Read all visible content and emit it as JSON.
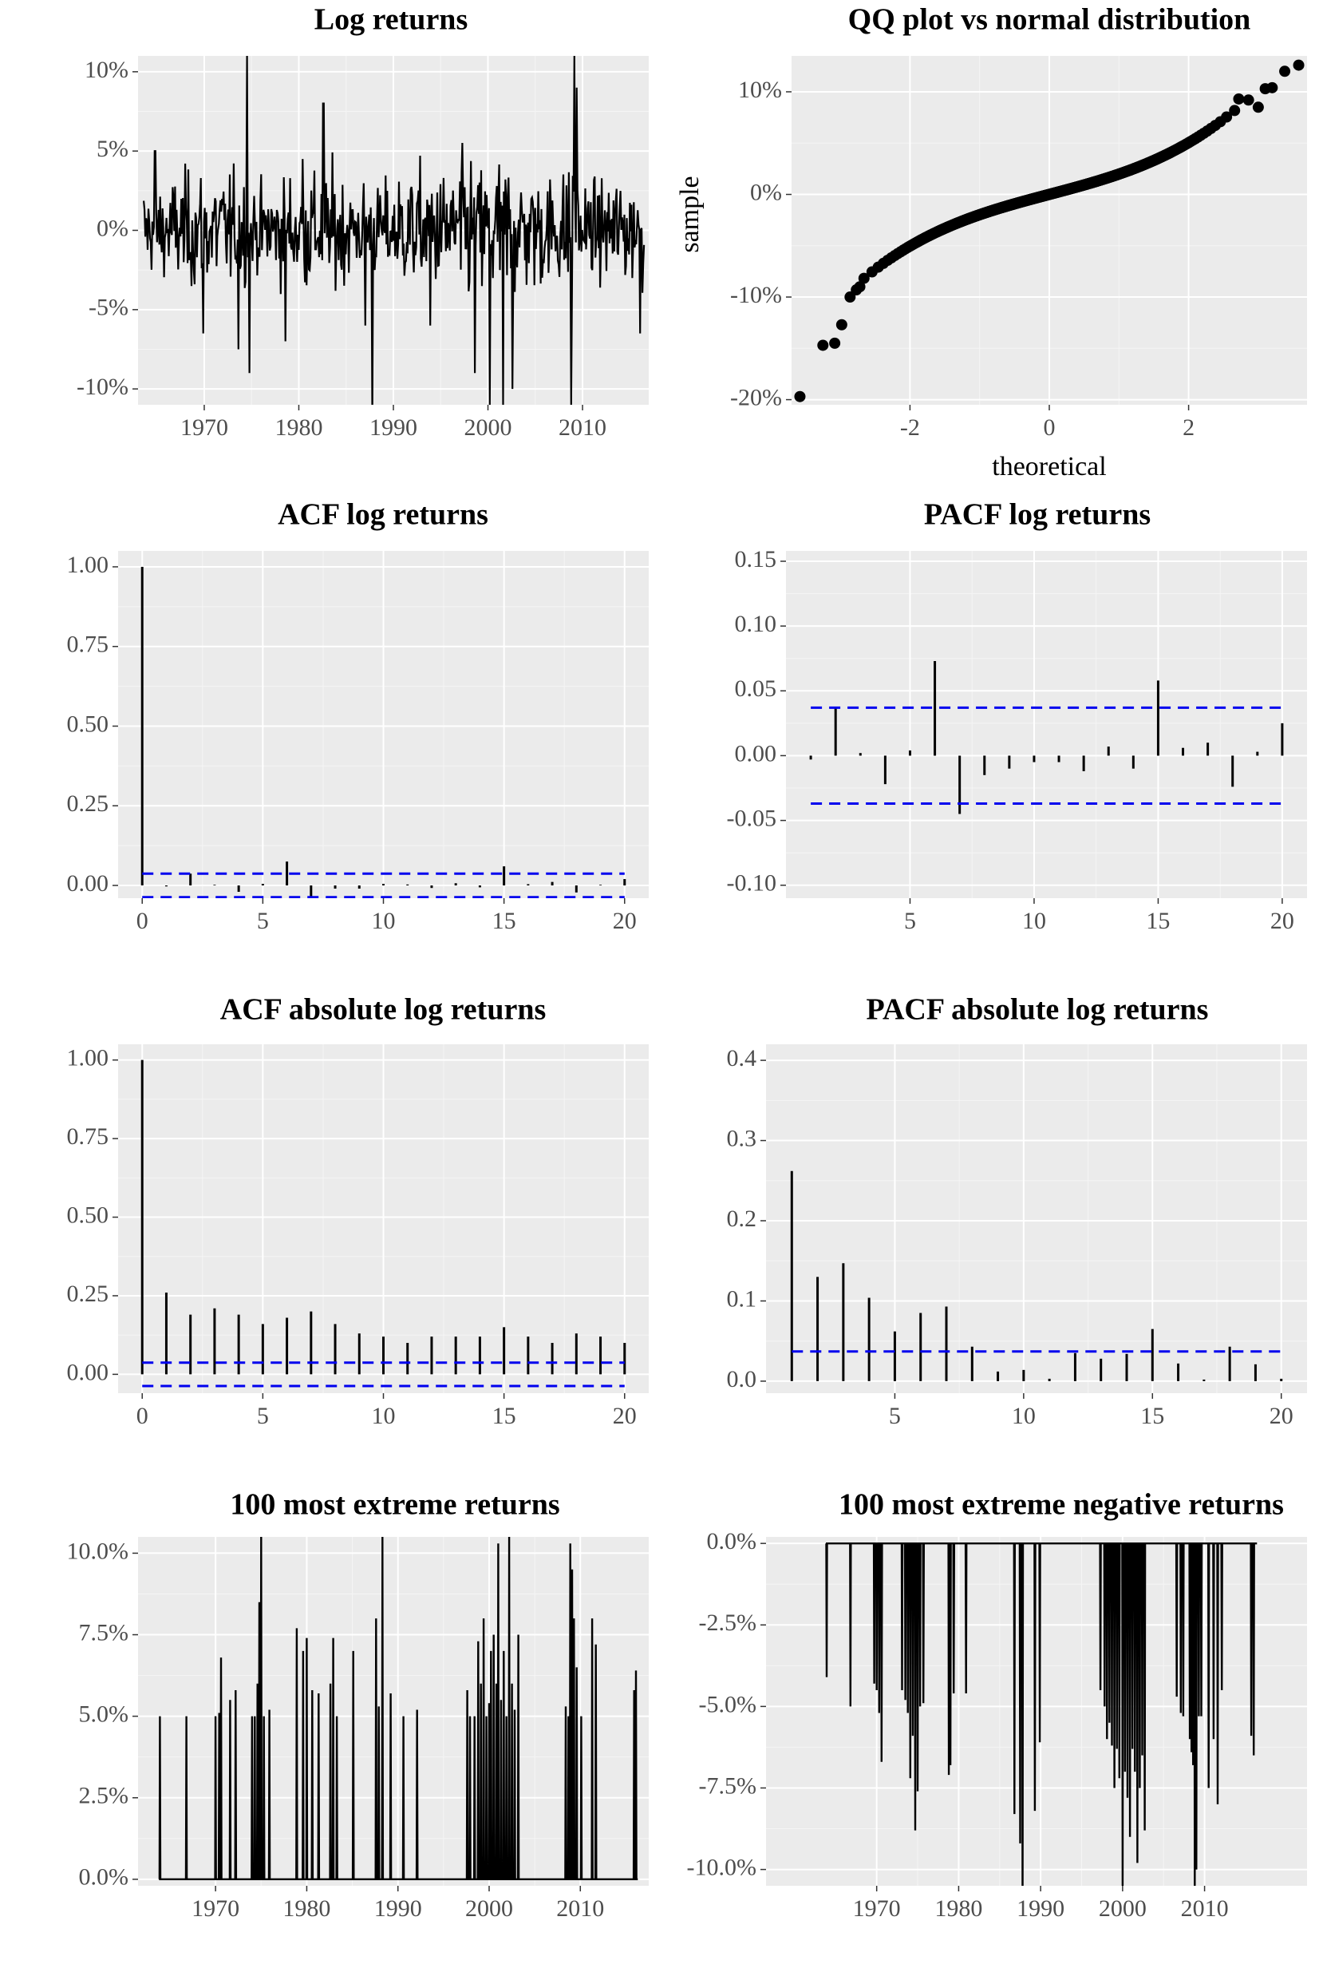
{
  "colors": {
    "panel_bg": "#ebebeb",
    "grid_major": "#ffffff",
    "ink": "#000000",
    "band": "#0000ee",
    "tick_text": "#4d4d4d"
  },
  "chart_data": [
    {
      "id": "log-returns",
      "type": "line",
      "title": "Log returns",
      "xlabel": "",
      "ylabel": "",
      "x_range": [
        1963,
        2017
      ],
      "ylim": [
        -0.11,
        0.11
      ],
      "x_ticks": [
        1970,
        1980,
        1990,
        2000,
        2010
      ],
      "x_tick_labels": [
        "1970",
        "1980",
        "1990",
        "2000",
        "2010"
      ],
      "y_ticks": [
        -0.1,
        -0.05,
        0.0,
        0.05,
        0.1
      ],
      "y_tick_labels": [
        "-10%",
        "-5%",
        "0%",
        "5%",
        "10%"
      ],
      "data_start": 1963.6,
      "data_end": 2016.5,
      "n_points": 640,
      "spikes": [
        [
          1964.8,
          0.05
        ],
        [
          1969.9,
          -0.065
        ],
        [
          1973.6,
          -0.075
        ],
        [
          1974.5,
          0.11
        ],
        [
          1974.8,
          -0.09
        ],
        [
          1978.6,
          -0.07
        ],
        [
          1980.4,
          0.045
        ],
        [
          1982.6,
          0.08
        ],
        [
          1987.0,
          -0.06
        ],
        [
          1987.8,
          -0.12
        ],
        [
          1993.9,
          -0.06
        ],
        [
          1998.6,
          -0.09
        ],
        [
          2000.2,
          -0.11
        ],
        [
          2001.6,
          -0.11
        ],
        [
          2002.6,
          -0.1
        ],
        [
          2008.8,
          -0.11
        ],
        [
          2009.1,
          0.11
        ],
        [
          2009.4,
          0.09
        ],
        [
          2016.1,
          -0.065
        ]
      ],
      "grid": true
    },
    {
      "id": "qq-plot",
      "type": "scatter",
      "title": "QQ plot vs normal distribution",
      "xlabel": "theoretical",
      "ylabel": "sample",
      "xlim": [
        -3.7,
        3.7
      ],
      "ylim": [
        -0.205,
        0.135
      ],
      "x_ticks": [
        -2,
        0,
        2
      ],
      "x_tick_labels": [
        "-2",
        "0",
        "2"
      ],
      "y_ticks": [
        -0.2,
        -0.1,
        0.0,
        0.1
      ],
      "y_tick_labels": [
        "-20%",
        "-10%",
        "0%",
        "10%"
      ],
      "n_points": 640,
      "tail_points": [
        [
          -3.58,
          -0.197
        ],
        [
          -3.25,
          -0.147
        ],
        [
          -3.08,
          -0.145
        ],
        [
          -2.98,
          -0.127
        ],
        [
          -2.86,
          -0.1
        ],
        [
          -2.77,
          -0.093
        ],
        [
          -2.72,
          -0.09
        ],
        [
          2.72,
          0.093
        ],
        [
          2.86,
          0.092
        ],
        [
          3.0,
          0.085
        ],
        [
          3.1,
          0.103
        ],
        [
          3.2,
          0.104
        ],
        [
          3.38,
          0.12
        ],
        [
          3.58,
          0.126
        ]
      ],
      "grid": true
    },
    {
      "id": "acf-log-returns",
      "type": "bar",
      "title": "ACF log returns",
      "xlabel": "",
      "ylabel": "",
      "xlim": [
        -1,
        21
      ],
      "ylim": [
        -0.04,
        1.05
      ],
      "x_ticks": [
        0,
        5,
        10,
        15,
        20
      ],
      "x_tick_labels": [
        "0",
        "5",
        "10",
        "15",
        "20"
      ],
      "y_ticks": [
        0.0,
        0.25,
        0.5,
        0.75,
        1.0
      ],
      "y_tick_labels": [
        "0.00",
        "0.25",
        "0.50",
        "0.75",
        "1.00"
      ],
      "lags": [
        0,
        1,
        2,
        3,
        4,
        5,
        6,
        7,
        8,
        9,
        10,
        11,
        12,
        13,
        14,
        15,
        16,
        17,
        18,
        19,
        20
      ],
      "values": [
        1.0,
        -0.003,
        0.037,
        0.002,
        -0.02,
        0.005,
        0.075,
        -0.043,
        -0.01,
        -0.01,
        0.005,
        0.003,
        -0.008,
        0.007,
        -0.006,
        0.06,
        0.004,
        0.011,
        -0.022,
        0.002,
        0.02
      ],
      "band": 0.037,
      "grid": true
    },
    {
      "id": "pacf-log-returns",
      "type": "bar",
      "title": "PACF log returns",
      "xlabel": "",
      "ylabel": "",
      "xlim": [
        0.0,
        21
      ],
      "ylim": [
        -0.11,
        0.158
      ],
      "x_ticks": [
        5,
        10,
        15,
        20
      ],
      "x_tick_labels": [
        "5",
        "10",
        "15",
        "20"
      ],
      "y_ticks": [
        -0.1,
        -0.05,
        0.0,
        0.05,
        0.1,
        0.15
      ],
      "y_tick_labels": [
        "-0.10",
        "-0.05",
        "0.00",
        "0.05",
        "0.10",
        "0.15"
      ],
      "lags": [
        1,
        2,
        3,
        4,
        5,
        6,
        7,
        8,
        9,
        10,
        11,
        12,
        13,
        14,
        15,
        16,
        17,
        18,
        19,
        20
      ],
      "values": [
        -0.003,
        0.037,
        0.002,
        -0.022,
        0.004,
        0.073,
        -0.045,
        -0.015,
        -0.01,
        -0.005,
        -0.005,
        -0.012,
        0.007,
        -0.01,
        0.058,
        0.006,
        0.01,
        -0.024,
        0.003,
        0.025
      ],
      "band": 0.037,
      "grid": true
    },
    {
      "id": "acf-absolute-log-returns",
      "type": "bar",
      "title": "ACF absolute log returns",
      "xlabel": "",
      "ylabel": "",
      "xlim": [
        -1,
        21
      ],
      "ylim": [
        -0.06,
        1.05
      ],
      "x_ticks": [
        0,
        5,
        10,
        15,
        20
      ],
      "x_tick_labels": [
        "0",
        "5",
        "10",
        "15",
        "20"
      ],
      "y_ticks": [
        0.0,
        0.25,
        0.5,
        0.75,
        1.0
      ],
      "y_tick_labels": [
        "0.00",
        "0.25",
        "0.50",
        "0.75",
        "1.00"
      ],
      "lags": [
        0,
        1,
        2,
        3,
        4,
        5,
        6,
        7,
        8,
        9,
        10,
        11,
        12,
        13,
        14,
        15,
        16,
        17,
        18,
        19,
        20
      ],
      "values": [
        1.0,
        0.26,
        0.19,
        0.21,
        0.19,
        0.16,
        0.18,
        0.2,
        0.16,
        0.13,
        0.12,
        0.1,
        0.12,
        0.12,
        0.12,
        0.15,
        0.12,
        0.1,
        0.13,
        0.12,
        0.1
      ],
      "band": 0.037,
      "band_lower": -0.037,
      "grid": true
    },
    {
      "id": "pacf-absolute-log-returns",
      "type": "bar",
      "title": "PACF absolute log returns",
      "xlabel": "",
      "ylabel": "",
      "xlim": [
        0.0,
        21
      ],
      "ylim": [
        -0.015,
        0.42
      ],
      "x_ticks": [
        5,
        10,
        15,
        20
      ],
      "x_tick_labels": [
        "5",
        "10",
        "15",
        "20"
      ],
      "y_ticks": [
        0.0,
        0.1,
        0.2,
        0.3,
        0.4
      ],
      "y_tick_labels": [
        "0.0",
        "0.1",
        "0.2",
        "0.3",
        "0.4"
      ],
      "lags": [
        1,
        2,
        3,
        4,
        5,
        6,
        7,
        8,
        9,
        10,
        11,
        12,
        13,
        14,
        15,
        16,
        17,
        18,
        19,
        20
      ],
      "values": [
        0.262,
        0.13,
        0.147,
        0.104,
        0.062,
        0.085,
        0.093,
        0.043,
        0.012,
        0.014,
        0.003,
        0.035,
        0.028,
        0.034,
        0.065,
        0.022,
        0.002,
        0.043,
        0.021,
        0.003
      ],
      "band": 0.037,
      "grid": true
    },
    {
      "id": "extreme-returns",
      "type": "line",
      "title": "100 most extreme returns",
      "xlabel": "",
      "ylabel": "",
      "x_range": [
        1961.5,
        2017.5
      ],
      "ylim": [
        -0.002,
        0.105
      ],
      "x_ticks": [
        1970,
        1980,
        1990,
        2000,
        2010
      ],
      "x_tick_labels": [
        "1970",
        "1980",
        "1990",
        "2000",
        "2010"
      ],
      "y_ticks": [
        0.0,
        0.025,
        0.05,
        0.075,
        0.1
      ],
      "y_tick_labels": [
        "0.0%",
        "2.5%",
        "5.0%",
        "7.5%",
        "10.0%"
      ],
      "x_start": 1963.8,
      "x_end": 2016.3,
      "spikes": [
        [
          1963.9,
          0.05
        ],
        [
          1966.8,
          0.05
        ],
        [
          1970.0,
          0.05
        ],
        [
          1970.4,
          0.051
        ],
        [
          1970.6,
          0.068
        ],
        [
          1971.6,
          0.055
        ],
        [
          1972.2,
          0.058
        ],
        [
          1974.0,
          0.05
        ],
        [
          1974.3,
          0.05
        ],
        [
          1974.6,
          0.06
        ],
        [
          1974.8,
          0.085
        ],
        [
          1975.0,
          0.105
        ],
        [
          1975.3,
          0.05
        ],
        [
          1975.9,
          0.052
        ],
        [
          1978.9,
          0.077
        ],
        [
          1979.6,
          0.07
        ],
        [
          1980.0,
          0.074
        ],
        [
          1980.6,
          0.058
        ],
        [
          1981.3,
          0.057
        ],
        [
          1982.6,
          0.06
        ],
        [
          1982.9,
          0.074
        ],
        [
          1983.3,
          0.05
        ],
        [
          1985.1,
          0.07
        ],
        [
          1987.6,
          0.08
        ],
        [
          1987.9,
          0.053
        ],
        [
          1988.3,
          0.105
        ],
        [
          1989.2,
          0.057
        ],
        [
          1990.6,
          0.05
        ],
        [
          1992.1,
          0.052
        ],
        [
          1997.6,
          0.058
        ],
        [
          1997.9,
          0.05
        ],
        [
          1998.4,
          0.05
        ],
        [
          1998.8,
          0.073
        ],
        [
          1999.1,
          0.06
        ],
        [
          1999.4,
          0.08
        ],
        [
          1999.7,
          0.05
        ],
        [
          2000.0,
          0.054
        ],
        [
          2000.2,
          0.07
        ],
        [
          2000.5,
          0.075
        ],
        [
          2000.8,
          0.06
        ],
        [
          2001.0,
          0.103
        ],
        [
          2001.3,
          0.055
        ],
        [
          2001.6,
          0.07
        ],
        [
          2001.9,
          0.05
        ],
        [
          2002.2,
          0.105
        ],
        [
          2002.5,
          0.06
        ],
        [
          2002.8,
          0.052
        ],
        [
          2003.2,
          0.075
        ],
        [
          2008.4,
          0.053
        ],
        [
          2008.7,
          0.05
        ],
        [
          2008.9,
          0.103
        ],
        [
          2009.1,
          0.095
        ],
        [
          2009.3,
          0.08
        ],
        [
          2009.6,
          0.065
        ],
        [
          2010.1,
          0.05
        ],
        [
          2011.3,
          0.08
        ],
        [
          2011.7,
          0.072
        ],
        [
          2015.9,
          0.058
        ],
        [
          2016.1,
          0.064
        ]
      ],
      "grid": true
    },
    {
      "id": "extreme-negative-returns",
      "type": "line",
      "title": "100 most extreme negative returns",
      "xlabel": "",
      "ylabel": "",
      "x_range": [
        1956.5,
        2022.5
      ],
      "ylim": [
        -0.105,
        0.002
      ],
      "x_ticks": [
        1970,
        1980,
        1990,
        2000,
        2010
      ],
      "x_tick_labels": [
        "1970",
        "1980",
        "1990",
        "2000",
        "2010"
      ],
      "y_ticks": [
        -0.1,
        -0.075,
        -0.05,
        -0.025,
        0.0
      ],
      "y_tick_labels": [
        "-10.0%",
        "-7.5%",
        "-5.0%",
        "-2.5%",
        "0.0%"
      ],
      "x_start": 1963.8,
      "x_end": 2016.4,
      "spikes": [
        [
          1963.9,
          -0.041
        ],
        [
          1966.8,
          -0.05
        ],
        [
          1969.7,
          -0.043
        ],
        [
          1970.0,
          -0.045
        ],
        [
          1970.3,
          -0.052
        ],
        [
          1970.6,
          -0.067
        ],
        [
          1973.1,
          -0.045
        ],
        [
          1973.5,
          -0.048
        ],
        [
          1973.8,
          -0.052
        ],
        [
          1974.1,
          -0.072
        ],
        [
          1974.4,
          -0.059
        ],
        [
          1974.7,
          -0.088
        ],
        [
          1975.0,
          -0.076
        ],
        [
          1975.3,
          -0.05
        ],
        [
          1975.7,
          -0.049
        ],
        [
          1978.8,
          -0.071
        ],
        [
          1979.0,
          -0.068
        ],
        [
          1979.4,
          -0.046
        ],
        [
          1980.9,
          -0.046
        ],
        [
          1986.8,
          -0.083
        ],
        [
          1987.5,
          -0.092
        ],
        [
          1987.8,
          -0.12
        ],
        [
          1989.3,
          -0.082
        ],
        [
          1989.9,
          -0.061
        ],
        [
          1997.3,
          -0.045
        ],
        [
          1997.8,
          -0.05
        ],
        [
          1998.1,
          -0.06
        ],
        [
          1998.4,
          -0.055
        ],
        [
          1998.7,
          -0.062
        ],
        [
          1999.0,
          -0.075
        ],
        [
          1999.3,
          -0.063
        ],
        [
          1999.6,
          -0.072
        ],
        [
          2000.0,
          -0.11
        ],
        [
          2000.3,
          -0.07
        ],
        [
          2000.6,
          -0.078
        ],
        [
          2000.9,
          -0.09
        ],
        [
          2001.2,
          -0.063
        ],
        [
          2001.5,
          -0.07
        ],
        [
          2001.8,
          -0.098
        ],
        [
          2002.1,
          -0.075
        ],
        [
          2002.4,
          -0.065
        ],
        [
          2002.7,
          -0.088
        ],
        [
          2006.6,
          -0.047
        ],
        [
          2007.1,
          -0.052
        ],
        [
          2007.4,
          -0.053
        ],
        [
          2008.2,
          -0.06
        ],
        [
          2008.4,
          -0.064
        ],
        [
          2008.6,
          -0.068
        ],
        [
          2008.8,
          -0.11
        ],
        [
          2009.0,
          -0.1
        ],
        [
          2009.3,
          -0.053
        ],
        [
          2009.6,
          -0.053
        ],
        [
          2010.5,
          -0.075
        ],
        [
          2011.1,
          -0.06
        ],
        [
          2011.6,
          -0.08
        ],
        [
          2012.1,
          -0.045
        ],
        [
          2015.7,
          -0.059
        ],
        [
          2016.0,
          -0.065
        ]
      ],
      "grid": true
    }
  ]
}
